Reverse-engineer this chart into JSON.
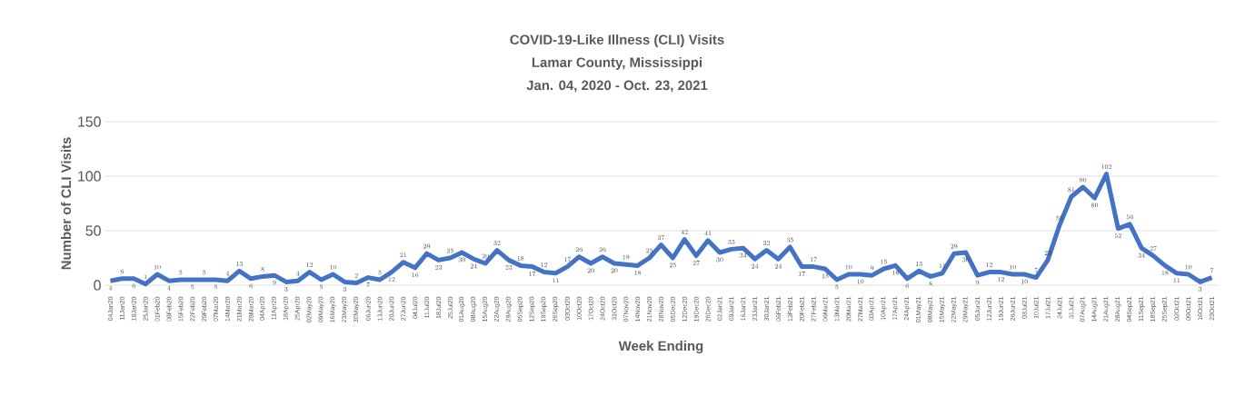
{
  "chart_data": {
    "type": "line",
    "title": "COVID-19-Like Illness (CLI) Visits",
    "subtitle": "Lamar County, Mississippi",
    "annotations": [
      "Jan. 04, 2020 - Oct. 23, 2021"
    ],
    "xlabel": "Week Ending",
    "ylabel": "Number of CLI Visits",
    "categories": [
      "04Jan20",
      "11Jan20",
      "18Jan20",
      "25Jan20",
      "01Feb20",
      "08Feb20",
      "15Feb20",
      "22Feb20",
      "29Feb20",
      "07Mar20",
      "14Mar20",
      "21Mar20",
      "28Mar20",
      "04Apr20",
      "11Apr20",
      "18Apr20",
      "25Apr20",
      "02May20",
      "09May20",
      "16May20",
      "23May20",
      "30May20",
      "06Jun20",
      "13Jun20",
      "20Jun20",
      "27Jun20",
      "04Jul20",
      "11Jul20",
      "18Jul20",
      "25Jul20",
      "01Aug20",
      "08Aug20",
      "15Aug20",
      "22Aug20",
      "29Aug20",
      "05Sep20",
      "12Sep20",
      "19Sep20",
      "26Sep20",
      "03Oct20",
      "10Oct20",
      "17Oct20",
      "24Oct20",
      "31Oct20",
      "07Nov20",
      "14Nov20",
      "21Nov20",
      "28Nov20",
      "05Dec20",
      "12Dec20",
      "19Dec20",
      "26Dec20",
      "02Jan21",
      "09Jan21",
      "16Jan21",
      "23Jan21",
      "30Jan21",
      "06Feb21",
      "13Feb21",
      "20Feb21",
      "27Feb21",
      "06Mar21",
      "13Mar21",
      "20Mar21",
      "27Mar21",
      "03Apr21",
      "10Apr21",
      "17Apr21",
      "24Apr21",
      "01May21",
      "08May21",
      "15May21",
      "22May21",
      "29May21",
      "05Jun21",
      "12Jun21",
      "19Jun21",
      "26Jun21",
      "03Jul21",
      "10Jul21",
      "17Jul21",
      "24Jul21",
      "31Jul21",
      "07Aug21",
      "14Aug21",
      "21Aug21",
      "28Aug21",
      "04Sep21",
      "11Sep21",
      "18Sep21",
      "25Sep21",
      "02Oct21",
      "09Oct21",
      "16Oct21",
      "23Oct21"
    ],
    "series": [
      {
        "color": "#4472c4",
        "values": [
          4,
          6,
          6,
          1,
          10,
          4,
          5,
          5,
          5,
          5,
          4,
          13,
          6,
          8,
          9,
          3,
          4,
          12,
          5,
          10,
          3,
          2,
          7,
          5,
          12,
          21,
          16,
          29,
          23,
          25,
          30,
          24,
          20,
          32,
          23,
          18,
          17,
          12,
          11,
          17,
          26,
          20,
          26,
          20,
          19,
          18,
          25,
          37,
          25,
          42,
          27,
          41,
          30,
          33,
          34,
          24,
          32,
          24,
          35,
          17,
          17,
          15,
          5,
          10,
          10,
          9,
          15,
          18,
          6,
          13,
          8,
          11,
          29,
          30,
          9,
          12,
          12,
          10,
          10,
          7,
          23,
          55,
          81,
          90,
          80,
          102,
          52,
          56,
          34,
          27,
          18,
          11,
          10,
          3,
          7
        ]
      }
    ],
    "ylim": [
      0,
      150
    ],
    "yticks": [
      0,
      50,
      100,
      150
    ],
    "grid": "y",
    "marker": "none",
    "line_style": "solid",
    "data_labels": true
  }
}
